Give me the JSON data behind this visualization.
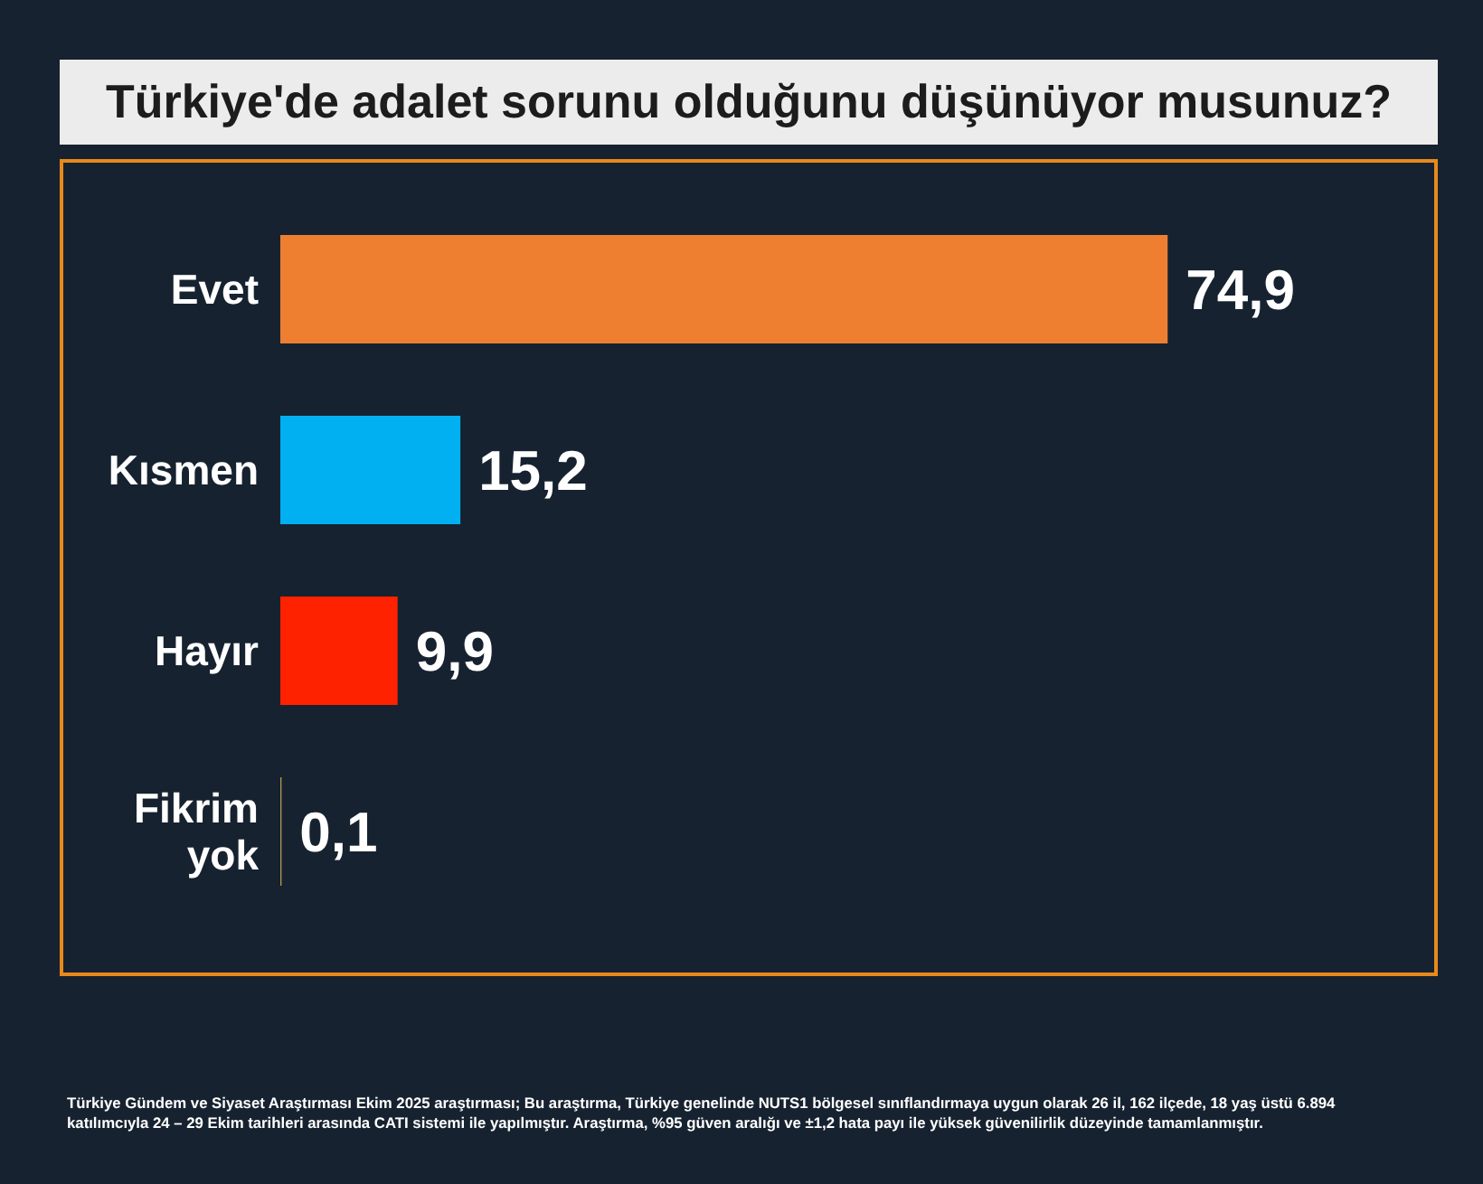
{
  "chart_data": {
    "type": "bar",
    "orientation": "horizontal",
    "title": "Türkiye'de adalet sorunu olduğunu düşünüyor musunuz?",
    "categories": [
      "Evet",
      "Kısmen",
      "Hayır",
      "Fikrim yok"
    ],
    "values": [
      74.9,
      15.2,
      9.9,
      0.1
    ],
    "colors": [
      "#ee7f31",
      "#00b0f0",
      "#ff2200",
      "#b39b4f"
    ],
    "value_labels": [
      "74,9",
      "15,2",
      "9,9",
      "0,1"
    ],
    "tick_labels": "y",
    "annotations": [
      "Türkiye Gündem ve Siyaset Araştırması Ekim 2025 araştırması; Bu araştırma, Türkiye genelinde NUTS1 bölgesel sınıflandırmaya uygun olarak 26 il, 162 ilçede, 18 yaş üstü 6.894 katılımcıyla 24 – 29 Ekim tarihleri arasında CATI sistemi ile yapılmıştır. Araştırma, %95 güven aralığı ve ±1,2 hata payı ile yüksek güvenilirlik düzeyinde tamamlanmıştır."
    ]
  }
}
